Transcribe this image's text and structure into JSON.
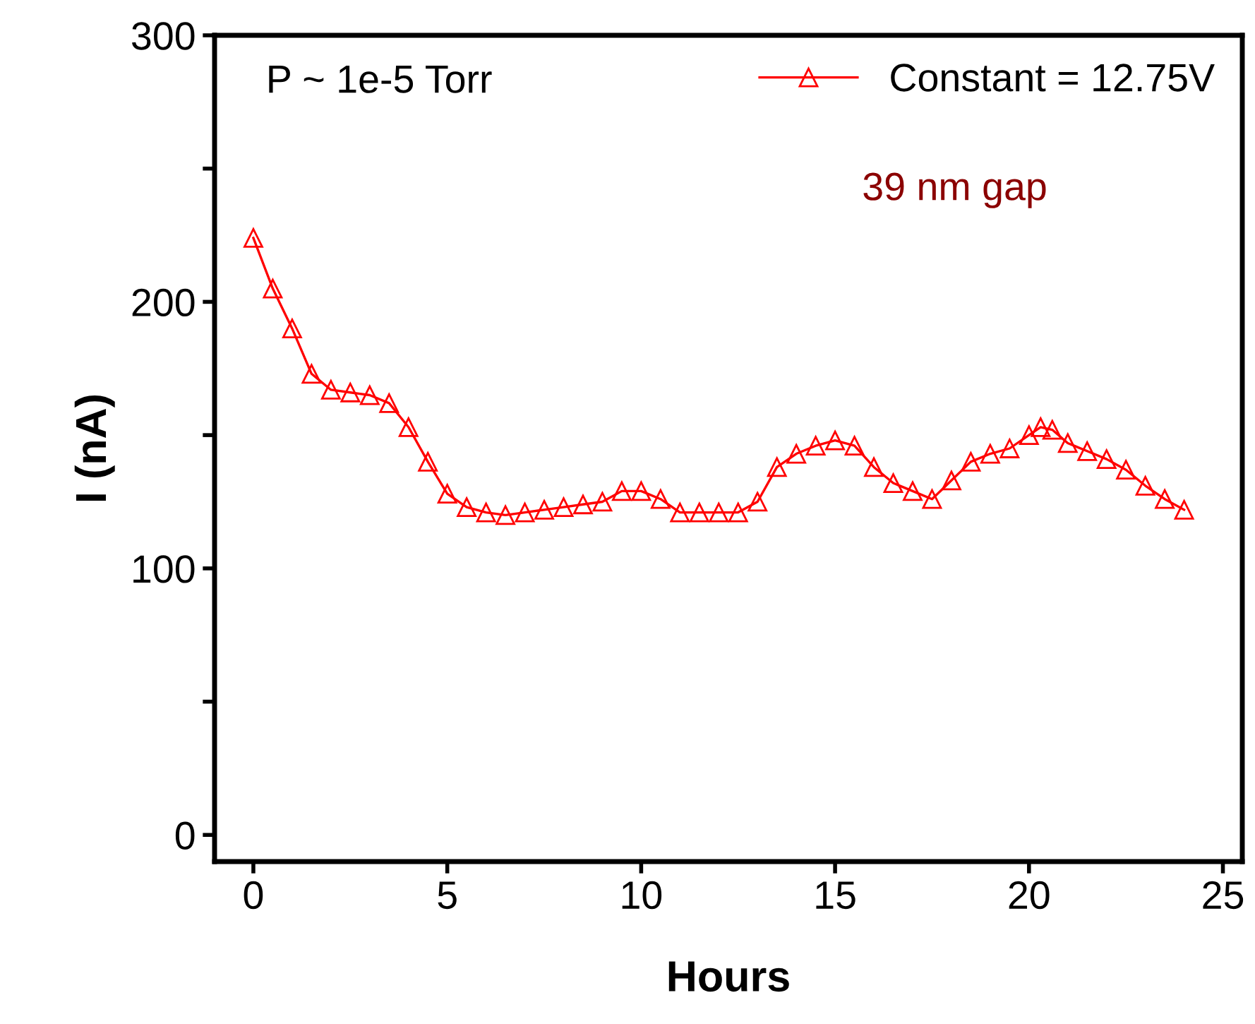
{
  "chart_data": {
    "type": "line",
    "xlabel": "Hours",
    "ylabel": "I (nA)",
    "xlim": [
      -1,
      25.5
    ],
    "ylim": [
      -10,
      300
    ],
    "xticks": [
      0,
      5,
      10,
      15,
      20,
      25
    ],
    "yticks": [
      0,
      {
        "value": 50,
        "label": null
      },
      100,
      {
        "value": 150,
        "label": null
      },
      200,
      {
        "value": 250,
        "label": null
      },
      300
    ],
    "x": [
      0,
      0.5,
      1,
      1.5,
      2,
      2.5,
      3,
      3.5,
      4,
      4.5,
      5,
      5.5,
      6,
      6.5,
      7,
      7.5,
      8,
      8.5,
      9,
      9.5,
      10,
      10.5,
      11,
      11.5,
      12,
      12.5,
      13,
      13.5,
      14,
      14.5,
      15,
      15.5,
      16,
      16.5,
      17,
      17.5,
      18,
      18.5,
      19,
      19.5,
      20,
      20.3,
      20.6,
      21,
      21.5,
      22,
      22.5,
      23,
      23.5,
      24
    ],
    "series": [
      {
        "name": "Constant = 12.75V",
        "color": "#ff0000",
        "values": [
          224,
          205,
          190,
          173,
          167,
          166,
          165,
          162,
          153,
          140,
          128,
          123,
          121,
          120,
          121,
          122,
          123,
          124,
          125,
          129,
          129,
          126,
          121,
          121,
          121,
          121,
          125,
          138,
          143,
          146,
          148,
          146,
          138,
          132,
          129,
          126,
          133,
          140,
          143,
          145,
          150,
          153,
          152,
          147,
          144,
          141,
          137,
          131,
          126,
          122
        ]
      }
    ],
    "marker": "triangle",
    "line_style": "solid",
    "legend": "top right",
    "grid": false,
    "annotations": [
      "P ~ 1e-5 Torr",
      "39 nm gap"
    ]
  }
}
